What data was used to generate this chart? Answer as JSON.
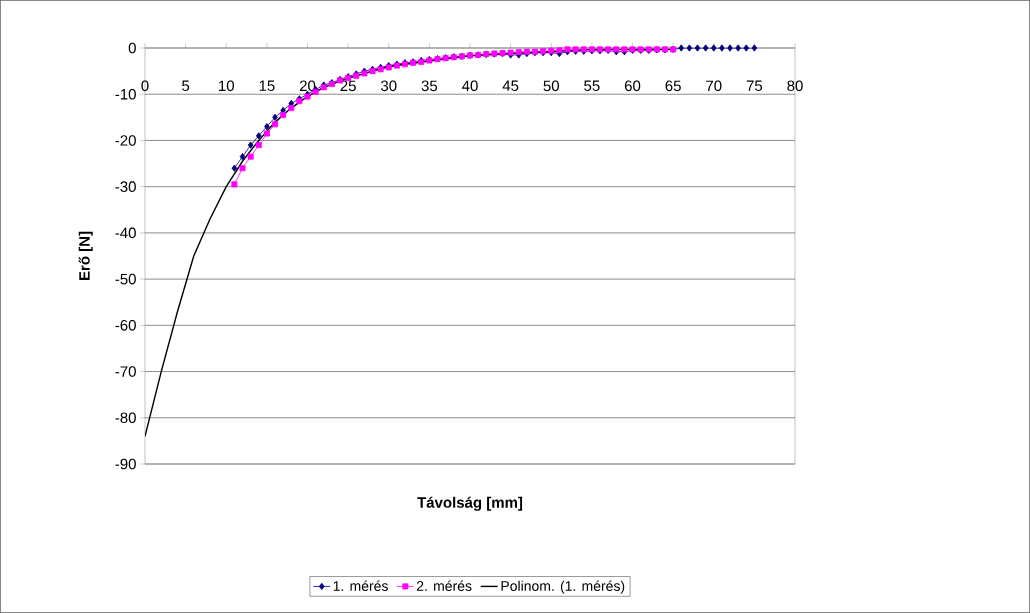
{
  "chart_data": {
    "type": "line",
    "xlabel": "Távolság [mm]",
    "ylabel": "Erő [N]",
    "xlim": [
      0,
      80
    ],
    "xticks": [
      0,
      5,
      10,
      15,
      20,
      25,
      30,
      35,
      40,
      45,
      50,
      55,
      60,
      65,
      70,
      75,
      80
    ],
    "ylim": [
      -90,
      0
    ],
    "yticks": [
      -90,
      -80,
      -70,
      -60,
      -50,
      -40,
      -30,
      -20,
      -10,
      0
    ],
    "grid": "y",
    "legend": "bottom",
    "series": [
      {
        "name": "1. mérés",
        "color": "#000080",
        "marker": "diamond",
        "x": [
          11,
          12,
          13,
          14,
          15,
          16,
          17,
          18,
          19,
          20,
          21,
          22,
          23,
          24,
          25,
          26,
          27,
          28,
          29,
          30,
          31,
          32,
          33,
          34,
          35,
          36,
          37,
          38,
          39,
          40,
          41,
          42,
          43,
          44,
          45,
          46,
          47,
          48,
          49,
          50,
          51,
          52,
          53,
          54,
          55,
          56,
          57,
          58,
          59,
          60,
          61,
          62,
          63,
          64,
          65,
          66,
          67,
          68,
          69,
          70,
          71,
          72,
          73,
          74,
          75
        ],
        "values": [
          -26,
          -23.5,
          -21,
          -19,
          -17,
          -15,
          -13.5,
          -12,
          -11,
          -10,
          -9,
          -8,
          -7.5,
          -6.8,
          -6.2,
          -5.6,
          -5,
          -4.6,
          -4.2,
          -3.8,
          -3.5,
          -3.2,
          -3,
          -2.7,
          -2.5,
          -2.3,
          -2.1,
          -1.9,
          -1.8,
          -1.6,
          -1.5,
          -1.4,
          -1.3,
          -1.2,
          -1.5,
          -1.5,
          -1.2,
          -1,
          -1,
          -1,
          -1.2,
          -0.8,
          -0.7,
          -0.7,
          -0.6,
          -0.6,
          -0.5,
          -0.8,
          -0.8,
          -0.5,
          -0.5,
          -0.5,
          -0.4,
          -0.4,
          -0.3,
          0,
          0,
          0,
          0,
          0,
          0,
          0,
          0,
          0,
          0
        ]
      },
      {
        "name": "2. mérés",
        "color": "#ff00ff",
        "marker": "square",
        "x": [
          11,
          12,
          13,
          14,
          15,
          16,
          17,
          18,
          19,
          20,
          21,
          22,
          23,
          24,
          25,
          26,
          27,
          28,
          29,
          30,
          31,
          32,
          33,
          34,
          35,
          36,
          37,
          38,
          39,
          40,
          41,
          42,
          43,
          44,
          45,
          46,
          47,
          48,
          49,
          50,
          51,
          52,
          53,
          54,
          55,
          56,
          57,
          58,
          59,
          60,
          61,
          62,
          63,
          64,
          65
        ],
        "values": [
          -29.5,
          -26,
          -23.5,
          -21,
          -18.5,
          -16.5,
          -14.5,
          -13,
          -11.5,
          -10.5,
          -9.5,
          -8.5,
          -7.8,
          -7,
          -6.5,
          -6,
          -5.5,
          -5,
          -4.6,
          -4.2,
          -3.8,
          -3.5,
          -3.2,
          -3,
          -2.7,
          -2.4,
          -2.2,
          -2,
          -1.8,
          -1.6,
          -1.5,
          -1.3,
          -1.2,
          -1.1,
          -1,
          -0.9,
          -0.8,
          -0.8,
          -0.7,
          -0.6,
          -0.5,
          -0.3,
          -0.3,
          -0.3,
          -0.3,
          -0.3,
          -0.3,
          -0.3,
          -0.3,
          -0.3,
          -0.3,
          -0.3,
          -0.3,
          -0.3,
          -0.3
        ]
      },
      {
        "name": "Polinom. (1. mérés)",
        "color": "#000000",
        "marker": "none",
        "x": [
          0,
          2,
          4,
          5,
          6,
          8,
          10,
          12,
          14,
          16,
          18,
          20,
          22,
          25,
          30,
          35,
          40,
          45,
          50,
          55,
          60,
          65
        ],
        "values": [
          -84,
          -70,
          -57,
          -51,
          -45,
          -37,
          -30,
          -24.5,
          -20,
          -16,
          -13,
          -10.5,
          -8.5,
          -6.5,
          -4,
          -2.8,
          -1.7,
          -1.2,
          -0.8,
          -0.3,
          -0.3,
          -0.3
        ]
      }
    ]
  }
}
